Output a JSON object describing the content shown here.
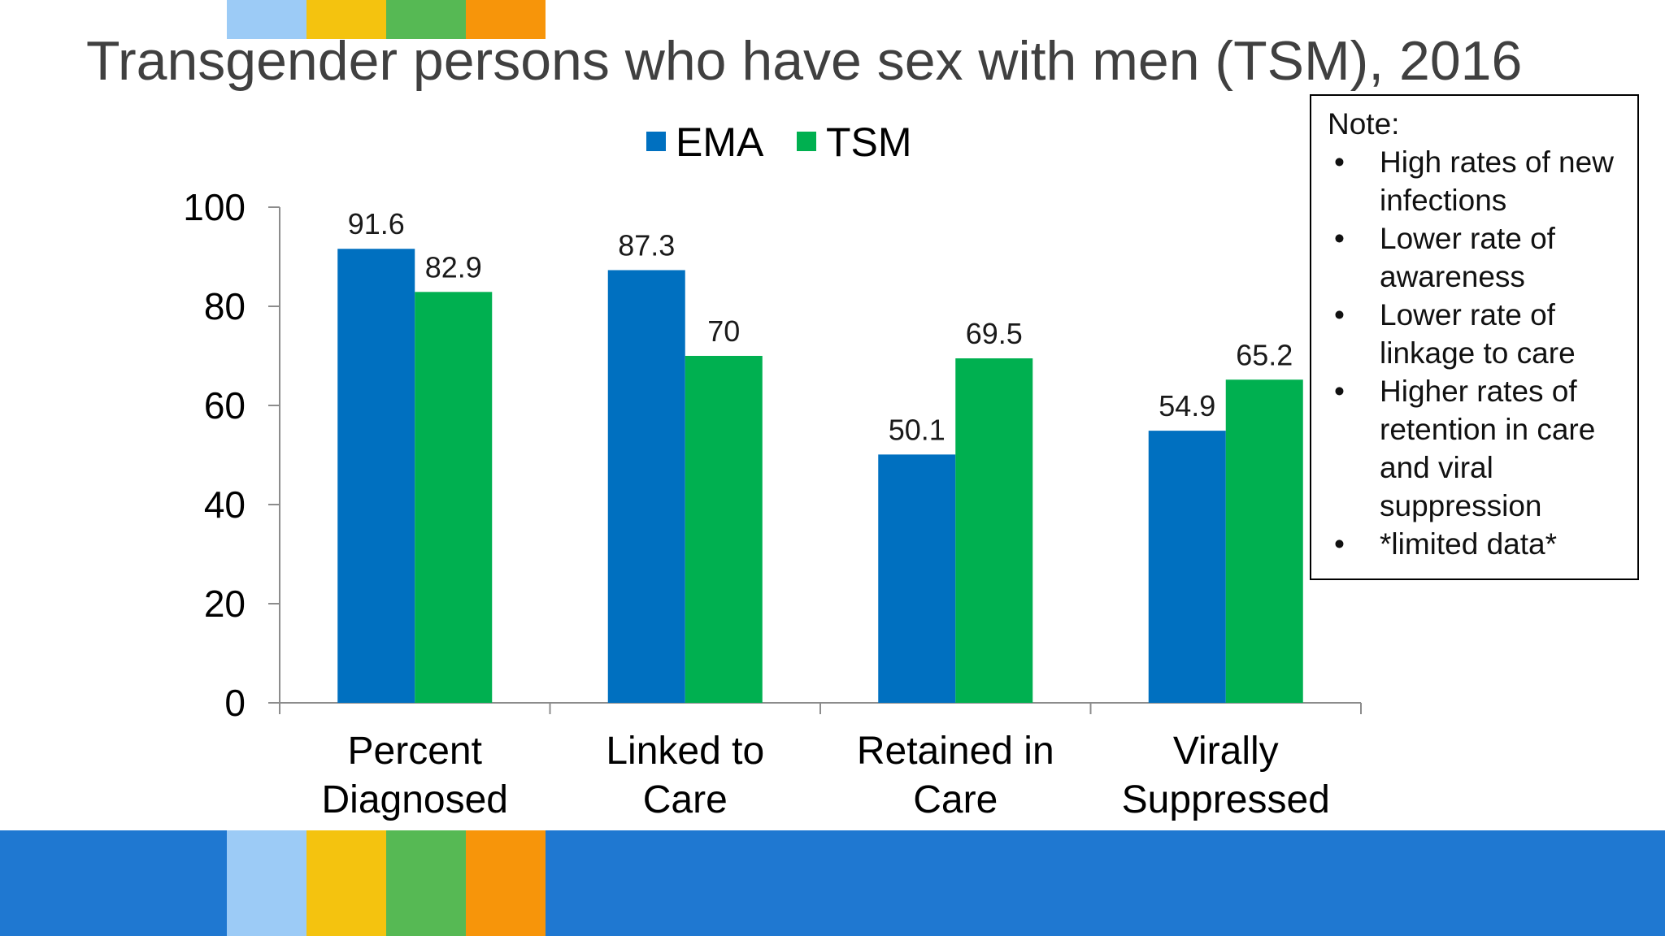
{
  "slide": {
    "title": "Transgender persons who have sex with men (TSM), 2016",
    "stripe_colors": [
      "#9ccbf6",
      "#f4c30f",
      "#56b954",
      "#f7950a"
    ],
    "footer_color": "#1f78d1"
  },
  "note": {
    "heading": "Note:",
    "items": [
      "High rates of new infections",
      "Lower rate of awareness",
      "Lower rate of linkage to care",
      "Higher rates of retention in care and viral suppression",
      "*limited data*"
    ]
  },
  "chart_data": {
    "type": "bar",
    "title": "",
    "xlabel": "",
    "ylabel": "",
    "categories": [
      "Percent Diagnosed",
      "Linked to Care",
      "Retained in Care",
      "Virally Suppressed"
    ],
    "series": [
      {
        "name": "EMA",
        "color": "#0070c0",
        "values": [
          91.6,
          87.3,
          50.1,
          54.9
        ],
        "labels": [
          "91.6",
          "87.3",
          "50.1",
          "54.9"
        ]
      },
      {
        "name": "TSM",
        "color": "#00b050",
        "values": [
          82.9,
          70,
          69.5,
          65.2
        ],
        "labels": [
          "82.9",
          "70",
          "69.5",
          "65.2"
        ]
      }
    ],
    "ylim": [
      0,
      100
    ],
    "yticks": [
      0,
      20,
      40,
      60,
      80,
      100
    ],
    "grid": false,
    "legend": "top-center",
    "data_labels": true
  }
}
